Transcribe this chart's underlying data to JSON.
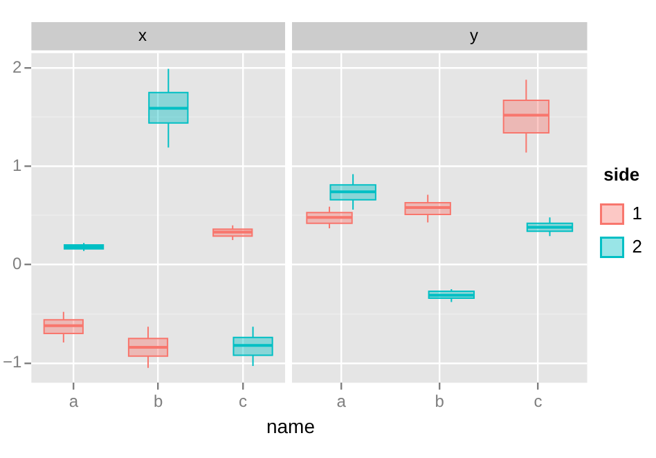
{
  "chart_data": [
    {
      "type": "box",
      "title": "x",
      "xlabel": "name",
      "categories": [
        "a",
        "b",
        "c"
      ],
      "ylim": [
        -1.2,
        2.15
      ],
      "yticks": [
        -1,
        {
          "value": -0.5,
          "label": null
        },
        0,
        {
          "value": 0.5,
          "label": null
        },
        1,
        {
          "value": 1.5,
          "label": null
        },
        2
      ],
      "grid": true,
      "series": [
        {
          "name": "1",
          "color": "#f8766d",
          "boxes": [
            {
              "low": -0.79,
              "q1": -0.7,
              "median": -0.62,
              "q3": -0.56,
              "high": -0.48
            },
            {
              "low": -1.05,
              "q1": -0.93,
              "median": -0.84,
              "q3": -0.75,
              "high": -0.63
            },
            {
              "low": 0.25,
              "q1": 0.29,
              "median": 0.33,
              "q3": 0.36,
              "high": 0.4
            }
          ]
        },
        {
          "name": "2",
          "color": "#00bfc4",
          "boxes": [
            {
              "low": 0.14,
              "q1": 0.16,
              "median": 0.18,
              "q3": 0.2,
              "high": 0.22
            },
            {
              "low": 1.19,
              "q1": 1.44,
              "median": 1.59,
              "q3": 1.75,
              "high": 1.99
            },
            {
              "low": -1.03,
              "q1": -0.92,
              "median": -0.82,
              "q3": -0.74,
              "high": -0.63
            }
          ]
        }
      ]
    },
    {
      "type": "box",
      "title": "y",
      "categories": [
        "a",
        "b",
        "c"
      ],
      "ylim": [
        -1.2,
        2.15
      ],
      "yticks": [
        -1,
        {
          "value": -0.5,
          "label": null
        },
        0,
        {
          "value": 0.5,
          "label": null
        },
        1,
        {
          "value": 1.5,
          "label": null
        },
        2
      ],
      "grid": true,
      "tick_labels": "x",
      "legend": "right",
      "legend_title": "side",
      "series": [
        {
          "name": "1",
          "color": "#f8766d",
          "boxes": [
            {
              "low": 0.37,
              "q1": 0.42,
              "median": 0.48,
              "q3": 0.53,
              "high": 0.59
            },
            {
              "low": 0.43,
              "q1": 0.51,
              "median": 0.58,
              "q3": 0.63,
              "high": 0.71
            },
            {
              "low": 1.14,
              "q1": 1.34,
              "median": 1.52,
              "q3": 1.67,
              "high": 1.88
            }
          ]
        },
        {
          "name": "2",
          "color": "#00bfc4",
          "boxes": [
            {
              "low": 0.56,
              "q1": 0.66,
              "median": 0.74,
              "q3": 0.81,
              "high": 0.92
            },
            {
              "low": -0.38,
              "q1": -0.34,
              "median": -0.31,
              "q3": -0.27,
              "high": -0.25
            },
            {
              "low": 0.29,
              "q1": 0.34,
              "median": 0.38,
              "q3": 0.42,
              "high": 0.48
            }
          ]
        }
      ]
    }
  ]
}
